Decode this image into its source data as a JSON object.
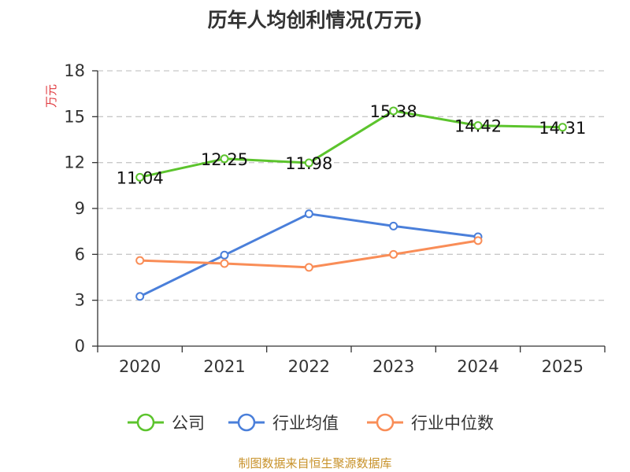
{
  "chart_data": {
    "type": "line",
    "title": "历年人均创利情况(万元)",
    "ylabel": "万元",
    "xlabel": "",
    "ylim": [
      0,
      18
    ],
    "yticks": [
      0,
      3,
      6,
      9,
      12,
      15,
      18
    ],
    "categories": [
      "2020",
      "2021",
      "2022",
      "2023",
      "2024",
      "2025"
    ],
    "grid": true,
    "legend_position": "bottom",
    "series": [
      {
        "name": "公司",
        "color": "#5cc42d",
        "values": [
          11.04,
          12.25,
          11.98,
          15.38,
          14.42,
          14.31
        ],
        "labels": [
          "11.04",
          "12.25",
          "11.98",
          "15.38",
          "14.42",
          "14.31"
        ]
      },
      {
        "name": "行业均值",
        "color": "#4a7fda",
        "values": [
          3.25,
          5.95,
          8.65,
          7.85,
          7.15,
          null
        ]
      },
      {
        "name": "行业中位数",
        "color": "#f98d57",
        "values": [
          5.6,
          5.4,
          5.15,
          6.0,
          6.9,
          null
        ]
      }
    ],
    "source": "制图数据来自恒生聚源数据库"
  }
}
